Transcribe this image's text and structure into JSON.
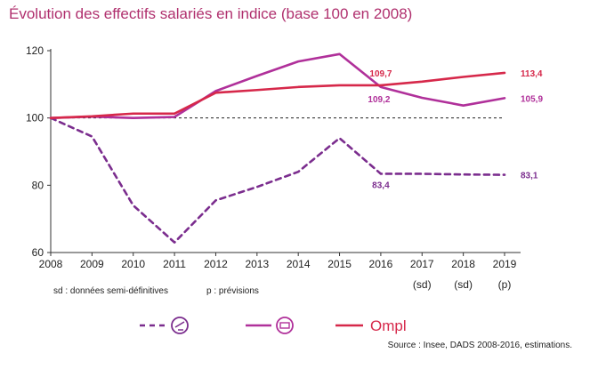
{
  "chart_data": {
    "type": "line",
    "title": "Évolution des effectifs salariés en indice (base 100 en 2008)",
    "xlabel": "",
    "ylabel": "",
    "ylim": [
      60,
      120
    ],
    "yticks": [
      "60",
      "80",
      "100",
      "120"
    ],
    "categories": [
      "2008",
      "2009",
      "2010",
      "2011",
      "2012",
      "2013",
      "2014",
      "2015",
      "2016",
      "2017",
      "2018",
      "2019"
    ],
    "category_sublabels": [
      "",
      "",
      "",
      "",
      "",
      "",
      "",
      "",
      "",
      "(sd)",
      "(sd)",
      "(p)"
    ],
    "reference_line": 100,
    "series": [
      {
        "values": [
          100,
          94.5,
          74,
          63,
          75.5,
          79.5,
          84,
          94,
          83.4,
          83.4,
          83.2,
          83.1
        ],
        "color": "#7b2d8e",
        "style": "dashed"
      },
      {
        "values": [
          100,
          100.4,
          100,
          100.3,
          108,
          112.5,
          116.8,
          119,
          109.2,
          106,
          103.7,
          105.9
        ],
        "color": "#b0309a",
        "style": "solid"
      },
      {
        "values": [
          100,
          100.5,
          101.3,
          101.3,
          107.5,
          108.3,
          109.2,
          109.7,
          109.7,
          110.8,
          112.2,
          113.4
        ],
        "color": "#d6284a",
        "style": "solid"
      }
    ],
    "data_labels": [
      {
        "series": 0,
        "index": 8,
        "text": "83,4"
      },
      {
        "series": 0,
        "index": 11,
        "text": "83,1"
      },
      {
        "series": 1,
        "index": 8,
        "text": "109,2"
      },
      {
        "series": 1,
        "index": 11,
        "text": "105,9"
      },
      {
        "series": 2,
        "index": 8,
        "text": "109,7"
      },
      {
        "series": 2,
        "index": 11,
        "text": "113,4"
      }
    ],
    "legend": {
      "placement": "bottom",
      "ompl_label": "Ompl"
    }
  },
  "notes": {
    "sd": "sd : données semi-définitives",
    "p": "p : prévisions"
  },
  "source": "Source : Insee, DADS 2008-2016, estimations."
}
